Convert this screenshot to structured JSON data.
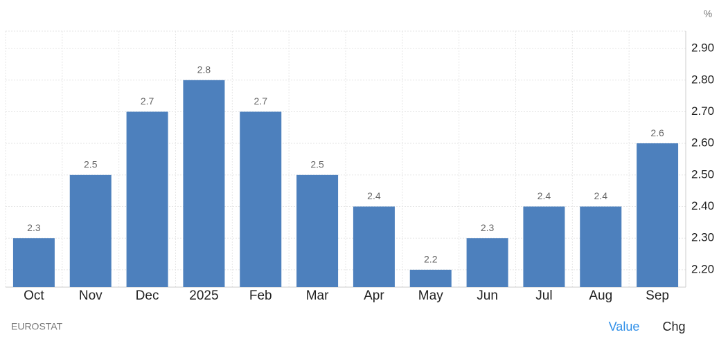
{
  "chart_data": {
    "type": "bar",
    "unit": "%",
    "categories": [
      "Oct",
      "Nov",
      "Dec",
      "2025",
      "Feb",
      "Mar",
      "Apr",
      "May",
      "Jun",
      "Jul",
      "Aug",
      "Sep"
    ],
    "values": [
      2.3,
      2.5,
      2.7,
      2.8,
      2.7,
      2.5,
      2.4,
      2.2,
      2.3,
      2.4,
      2.4,
      2.6
    ],
    "color": "#4d80bd",
    "ylim": [
      2.145,
      2.955
    ],
    "yticks": [
      {
        "value": 2.2,
        "label": "2.20"
      },
      {
        "value": 2.3,
        "label": "2.30"
      },
      {
        "value": 2.4,
        "label": "2.40"
      },
      {
        "value": 2.5,
        "label": "2.50"
      },
      {
        "value": 2.6,
        "label": "2.60"
      },
      {
        "value": 2.7,
        "label": "2.70"
      },
      {
        "value": 2.8,
        "label": "2.80"
      },
      {
        "value": 2.9,
        "label": "2.90"
      }
    ],
    "grid": true
  },
  "footer": {
    "source": "EUROSTAT",
    "buttons": [
      "Value",
      "Chg"
    ]
  }
}
